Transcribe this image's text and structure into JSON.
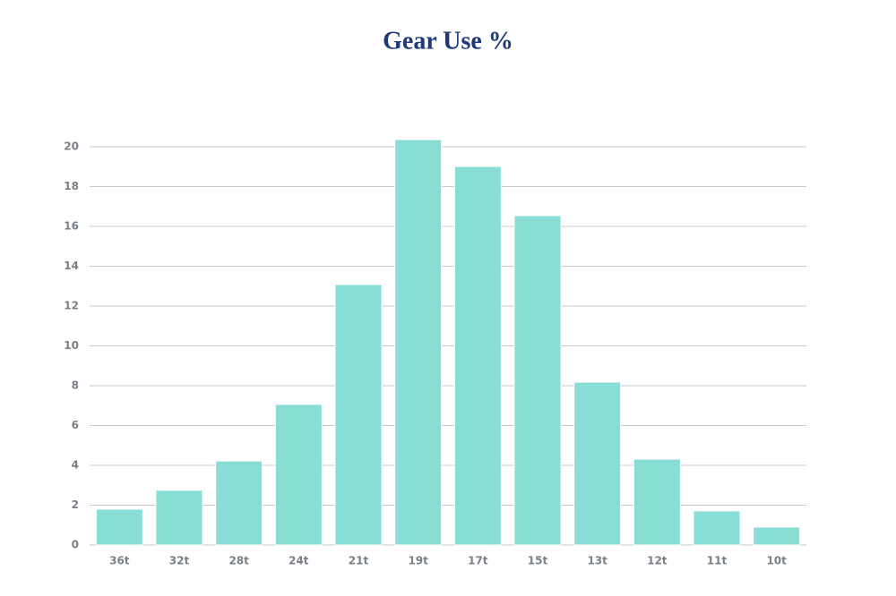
{
  "chart_data": {
    "type": "bar",
    "title": "Gear Use %",
    "categories": [
      "36t",
      "32t",
      "28t",
      "24t",
      "21t",
      "19t",
      "17t",
      "15t",
      "13t",
      "12t",
      "11t",
      "10t"
    ],
    "values": [
      1.8,
      2.75,
      4.22,
      7.06,
      13.08,
      20.36,
      19.01,
      16.54,
      8.18,
      4.31,
      1.71,
      0.9
    ],
    "color": "#88ddd4",
    "ylim": [
      0,
      20.4
    ],
    "yticks": [
      0,
      2,
      4,
      6,
      8,
      10,
      12,
      14,
      16,
      18,
      20
    ],
    "grid": true
  }
}
